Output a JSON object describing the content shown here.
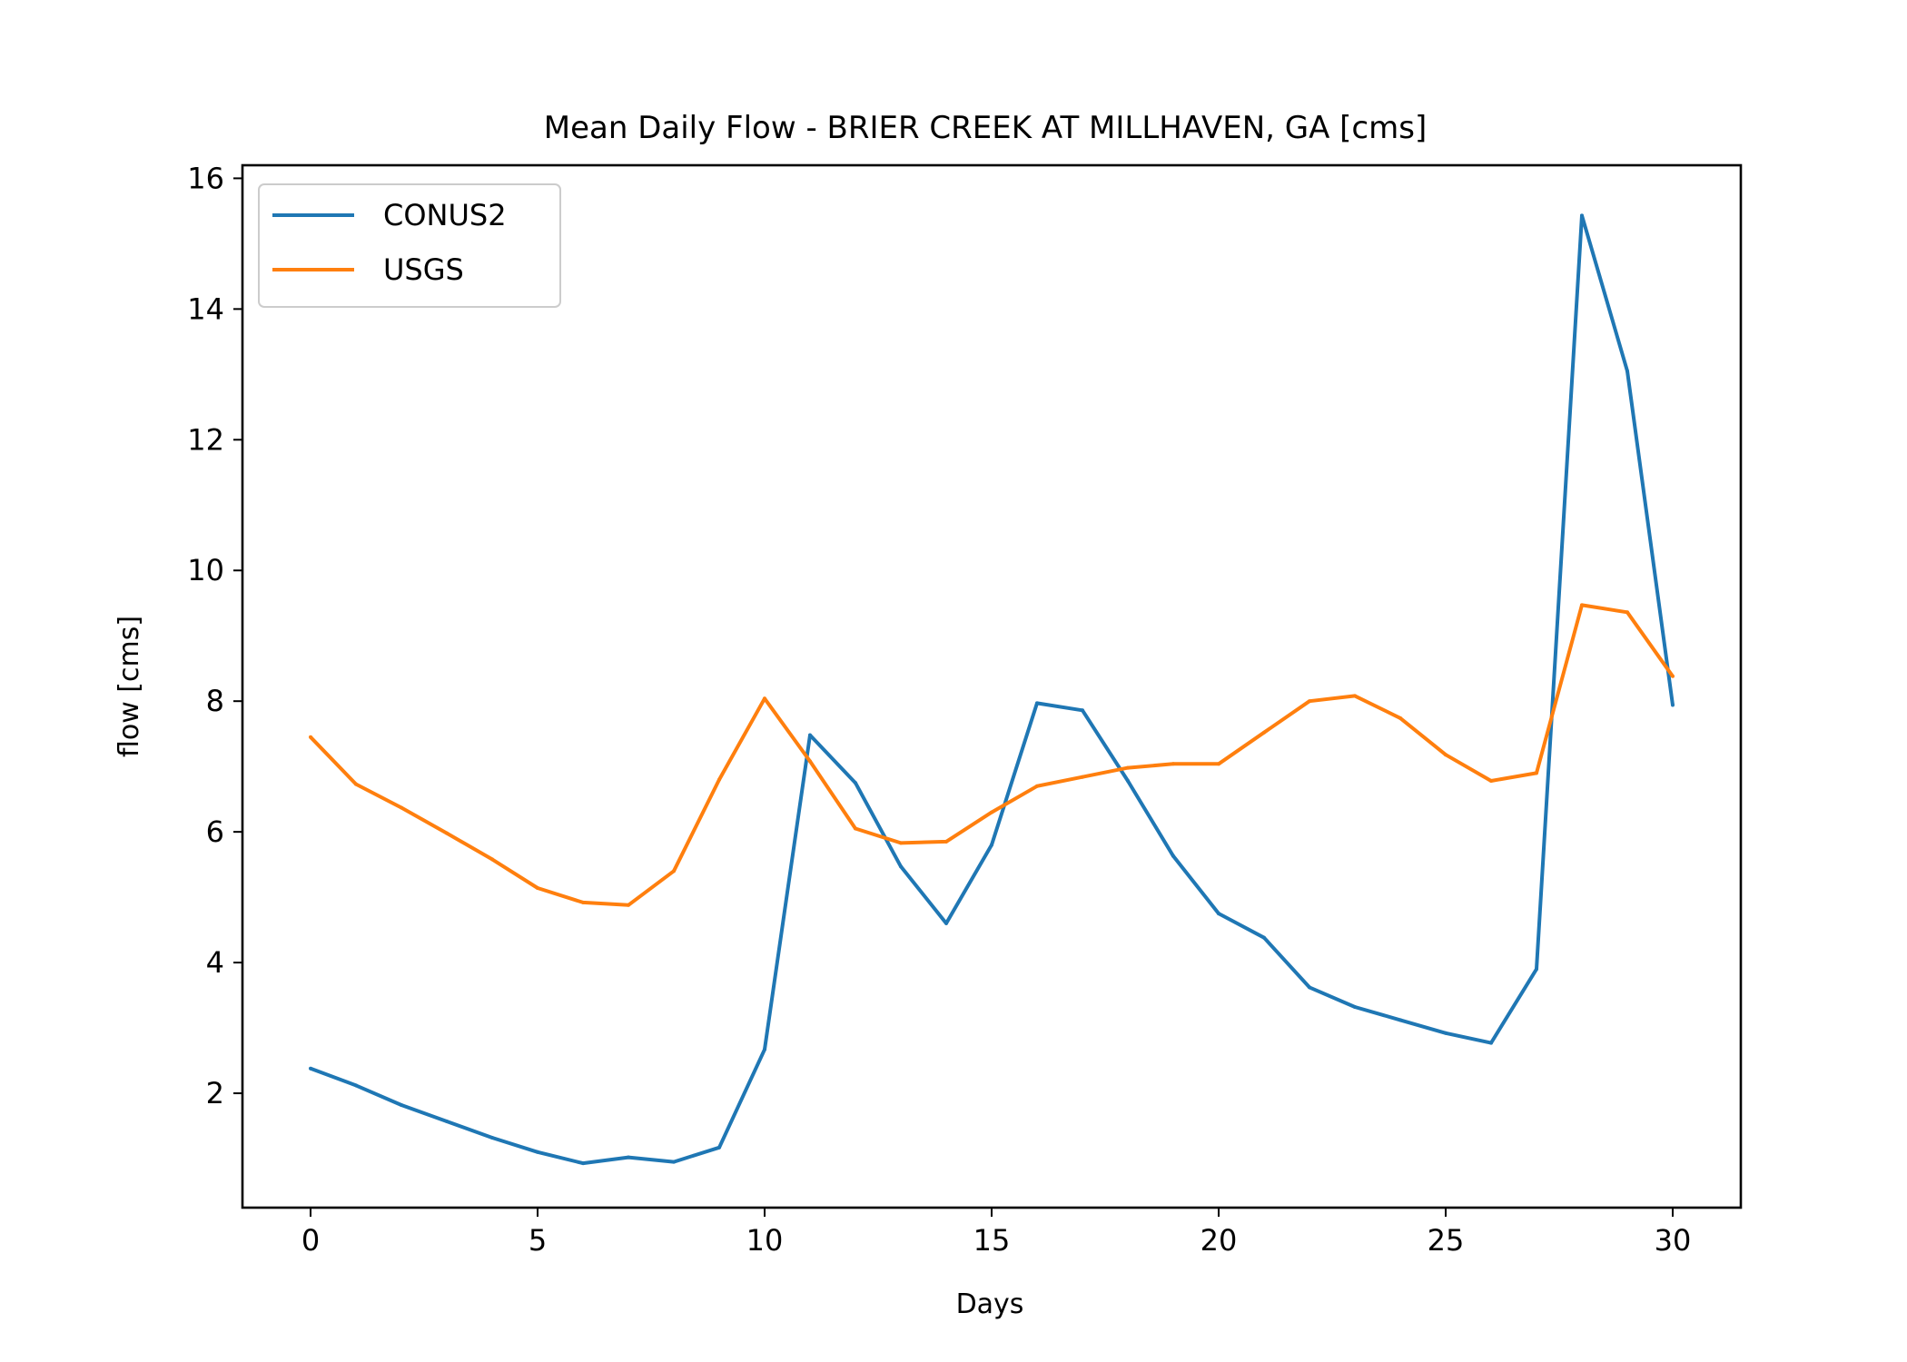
{
  "chart_data": {
    "type": "line",
    "title": "Mean Daily Flow - BRIER CREEK AT MILLHAVEN, GA [cms]",
    "xlabel": "Days",
    "ylabel": "flow [cms]",
    "xlim": [
      -1.5,
      31.5
    ],
    "ylim": [
      0.25,
      16.2
    ],
    "xticks": [
      0,
      5,
      10,
      15,
      20,
      25,
      30
    ],
    "yticks": [
      2,
      4,
      6,
      8,
      10,
      12,
      14,
      16
    ],
    "grid": false,
    "legend": "top-left",
    "x": [
      0,
      1,
      2,
      3,
      4,
      5,
      6,
      7,
      8,
      9,
      10,
      11,
      12,
      13,
      14,
      15,
      16,
      17,
      18,
      19,
      20,
      21,
      22,
      23,
      24,
      25,
      26,
      27,
      28,
      29,
      30
    ],
    "series": [
      {
        "name": "CONUS2",
        "color": "#1f77b4",
        "values": [
          2.38,
          2.12,
          1.82,
          1.57,
          1.32,
          1.1,
          0.93,
          1.02,
          0.95,
          1.17,
          2.67,
          7.48,
          6.75,
          5.47,
          4.6,
          5.8,
          7.97,
          7.86,
          6.78,
          5.63,
          4.75,
          4.38,
          3.62,
          3.32,
          3.12,
          2.92,
          2.77,
          3.9,
          15.43,
          13.05,
          7.94
        ]
      },
      {
        "name": "USGS",
        "color": "#ff7f0e",
        "values": [
          7.45,
          6.73,
          6.37,
          5.98,
          5.58,
          5.14,
          4.92,
          4.88,
          5.4,
          6.8,
          8.04,
          7.08,
          6.05,
          5.83,
          5.85,
          6.3,
          6.7,
          6.84,
          6.98,
          7.04,
          7.04,
          7.52,
          8.0,
          8.08,
          7.74,
          7.18,
          6.78,
          6.9,
          9.47,
          9.36,
          8.38
        ]
      }
    ]
  }
}
